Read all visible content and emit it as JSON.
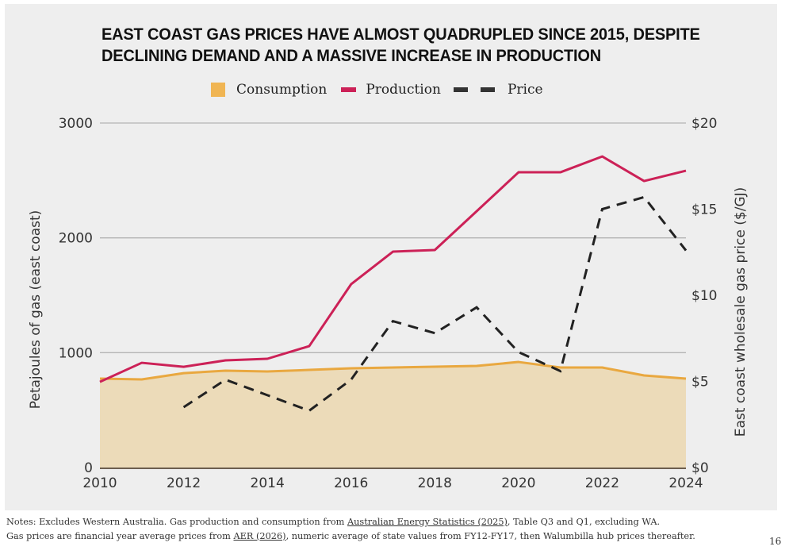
{
  "page": {
    "title_lines": [
      "EAST COAST GAS PRICES HAVE ALMOST QUADRUPLED SINCE 2015, DESPITE",
      "DECLINING DEMAND AND A MASSIVE INCREASE IN PRODUCTION"
    ],
    "legend": [
      {
        "label": "Consumption",
        "icon": "area-swatch-icon"
      },
      {
        "label": "Production",
        "icon": "line-swatch-icon"
      },
      {
        "label": "Price",
        "icon": "dashed-line-swatch-icon"
      }
    ],
    "notes": {
      "line1_prefix": "Notes: Excludes Western Australia. Gas production and consumption from ",
      "line1_link": "Australian Energy Statistics (2025)",
      "line1_suffix": ", Table Q3 and Q1, excluding WA.",
      "line2_prefix": "Gas prices are financial year average prices from ",
      "line2_link": "AER (2026)",
      "line2_suffix": ", numeric average of state values from FY12-FY17, then Walumbilla hub prices thereafter."
    },
    "page_number": "16"
  },
  "colors": {
    "consumption_line": "#e9a840",
    "consumption_fill": "#ecdbb9",
    "consumption_legend": "#f0b553",
    "production": "#cc2157",
    "price": "#222222",
    "gridline": "#b4b4b4",
    "panel": "#eeeeee"
  },
  "chart_data": {
    "type": "line",
    "title": "EAST COAST GAS PRICES HAVE ALMOST QUADRUPLED SINCE 2015, DESPITE DECLINING DEMAND AND A MASSIVE INCREASE IN PRODUCTION",
    "x": [
      2010,
      2011,
      2012,
      2013,
      2014,
      2015,
      2016,
      2017,
      2018,
      2019,
      2020,
      2021,
      2022,
      2023,
      2024
    ],
    "xlim": [
      2010,
      2024
    ],
    "xticks": [
      "2010",
      "2012",
      "2014",
      "2016",
      "2018",
      "2020",
      "2022",
      "2024"
    ],
    "ylabel": "Petajoules of gas (east coast)",
    "ylim": [
      0,
      3000
    ],
    "yticks": [
      "0",
      "1000",
      "2000",
      "3000"
    ],
    "y2label": "East coast wholesale gas price ($/GJ)",
    "y2lim": [
      0,
      20
    ],
    "y2ticks": [
      "$0",
      "$5",
      "$10",
      "$15",
      "$20"
    ],
    "grid": true,
    "legend_position": "top-center",
    "series": [
      {
        "name": "Consumption",
        "type": "area",
        "axis": "left",
        "values": [
          774,
          767,
          822,
          843,
          836,
          850,
          864,
          871,
          878,
          885,
          919,
          871,
          871,
          802,
          774
        ]
      },
      {
        "name": "Production",
        "type": "line",
        "axis": "left",
        "values": [
          746,
          912,
          877,
          933,
          947,
          1057,
          1596,
          1880,
          1894,
          2232,
          2571,
          2571,
          2709,
          2495,
          2585
        ]
      },
      {
        "name": "Price",
        "type": "dashed-line",
        "axis": "right",
        "values": [
          null,
          null,
          3.5,
          5.1,
          4.2,
          3.3,
          5.1,
          8.5,
          7.8,
          9.3,
          6.7,
          5.6,
          15.0,
          15.7,
          12.6
        ]
      }
    ]
  }
}
